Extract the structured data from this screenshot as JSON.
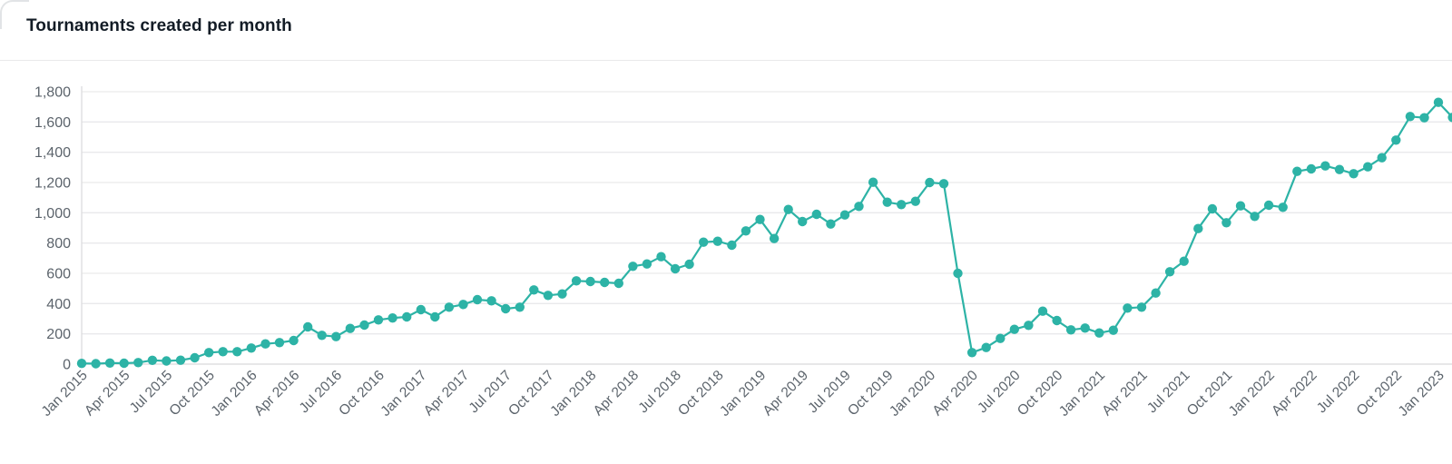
{
  "card": {
    "title": "Tournaments created per month"
  },
  "chart_data": {
    "type": "line",
    "title": "Tournaments created per month",
    "legend": "none",
    "grid": "horizontal",
    "ylim": [
      0,
      1800
    ],
    "y_ticks": [
      0,
      200,
      400,
      600,
      800,
      1000,
      1200,
      1400,
      1600,
      1800
    ],
    "y_tick_labels": [
      "0",
      "200",
      "400",
      "600",
      "800",
      "1,000",
      "1,200",
      "1,400",
      "1,600",
      "1,800"
    ],
    "x": [
      "Jan 2015",
      "Feb 2015",
      "Mar 2015",
      "Apr 2015",
      "May 2015",
      "Jun 2015",
      "Jul 2015",
      "Aug 2015",
      "Sep 2015",
      "Oct 2015",
      "Nov 2015",
      "Dec 2015",
      "Jan 2016",
      "Feb 2016",
      "Mar 2016",
      "Apr 2016",
      "May 2016",
      "Jun 2016",
      "Jul 2016",
      "Aug 2016",
      "Sep 2016",
      "Oct 2016",
      "Nov 2016",
      "Dec 2016",
      "Jan 2017",
      "Feb 2017",
      "Mar 2017",
      "Apr 2017",
      "May 2017",
      "Jun 2017",
      "Jul 2017",
      "Aug 2017",
      "Sep 2017",
      "Oct 2017",
      "Nov 2017",
      "Dec 2017",
      "Jan 2018",
      "Feb 2018",
      "Mar 2018",
      "Apr 2018",
      "May 2018",
      "Jun 2018",
      "Jul 2018",
      "Aug 2018",
      "Sep 2018",
      "Oct 2018",
      "Nov 2018",
      "Dec 2018",
      "Jan 2019",
      "Feb 2019",
      "Mar 2019",
      "Apr 2019",
      "May 2019",
      "Jun 2019",
      "Jul 2019",
      "Aug 2019",
      "Sep 2019",
      "Oct 2019",
      "Nov 2019",
      "Dec 2019",
      "Jan 2020",
      "Feb 2020",
      "Mar 2020",
      "Apr 2020",
      "May 2020",
      "Jun 2020",
      "Jul 2020",
      "Aug 2020",
      "Sep 2020",
      "Oct 2020",
      "Nov 2020",
      "Dec 2020",
      "Jan 2021",
      "Feb 2021",
      "Mar 2021",
      "Apr 2021",
      "May 2021",
      "Jun 2021",
      "Jul 2021",
      "Aug 2021",
      "Sep 2021",
      "Oct 2021",
      "Nov 2021",
      "Dec 2021",
      "Jan 2022",
      "Feb 2022",
      "Mar 2022",
      "Apr 2022",
      "May 2022",
      "Jun 2022",
      "Jul 2022",
      "Aug 2022",
      "Sep 2022",
      "Oct 2022",
      "Nov 2022",
      "Dec 2022",
      "Jan 2023",
      "Feb 2023"
    ],
    "values": [
      5,
      3,
      7,
      6,
      10,
      25,
      21,
      26,
      42,
      76,
      82,
      82,
      106,
      134,
      142,
      156,
      246,
      190,
      182,
      236,
      258,
      292,
      305,
      312,
      360,
      312,
      376,
      394,
      426,
      418,
      366,
      376,
      490,
      454,
      464,
      550,
      546,
      540,
      534,
      646,
      662,
      710,
      630,
      660,
      806,
      812,
      786,
      880,
      956,
      830,
      1022,
      942,
      990,
      926,
      986,
      1042,
      1202,
      1070,
      1054,
      1076,
      1200,
      1192,
      600,
      76,
      110,
      170,
      230,
      256,
      350,
      288,
      226,
      238,
      206,
      224,
      370,
      376,
      470,
      610,
      680,
      896,
      1026,
      934,
      1046,
      976,
      1050,
      1036,
      1274,
      1290,
      1310,
      1286,
      1258,
      1304,
      1364,
      1480,
      1636,
      1628,
      1730,
      1630
    ],
    "x_tick_labels": [
      "Jan 2015",
      "Apr 2015",
      "Jul 2015",
      "Oct 2015",
      "Jan 2016",
      "Apr 2016",
      "Jul 2016",
      "Oct 2016",
      "Jan 2017",
      "Apr 2017",
      "Jul 2017",
      "Oct 2017",
      "Jan 2018",
      "Apr 2018",
      "Jul 2018",
      "Oct 2018",
      "Jan 2019",
      "Apr 2019",
      "Jul 2019",
      "Oct 2019",
      "Jan 2020",
      "Apr 2020",
      "Jul 2020",
      "Oct 2020",
      "Jan 2021",
      "Apr 2021",
      "Jul 2021",
      "Oct 2021",
      "Jan 2022",
      "Apr 2022",
      "Jul 2022",
      "Oct 2022",
      "Jan 2023"
    ],
    "x_tick_every": 3,
    "colors": {
      "line": "#2db3a6",
      "marker": "#2db3a6",
      "grid": "#e9e9eb",
      "axis": "#dcdcde",
      "tick_label": "#5c646c",
      "title": "#131c26",
      "background": "#ffffff"
    }
  }
}
